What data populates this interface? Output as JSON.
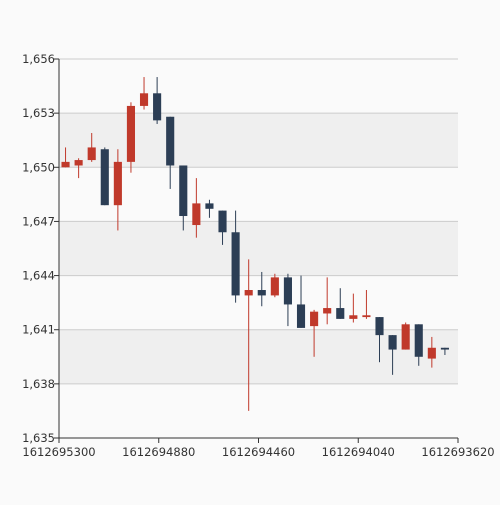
{
  "chart_data": {
    "type": "candlestick",
    "x_ticks": [
      "1612695300",
      "1612694880",
      "1612694460",
      "1612694040",
      "1612693620"
    ],
    "y_ticks": [
      "1,635",
      "1,638",
      "1,641",
      "1,644",
      "1,647",
      "1,650",
      "1,653",
      "1,656"
    ],
    "ylim": [
      1635,
      1656
    ],
    "grid": true,
    "legend": "none",
    "colors": {
      "up": "#c0392b",
      "down": "#2c3e55",
      "band_light": "#fafafa",
      "band_dark": "#efefef",
      "grid": "#cccccc",
      "axis": "#333333"
    },
    "candles": [
      {
        "open": 1650.0,
        "close": 1650.3,
        "high": 1651.1,
        "low": 1650.0
      },
      {
        "open": 1650.1,
        "close": 1650.4,
        "high": 1650.5,
        "low": 1649.4
      },
      {
        "open": 1650.4,
        "close": 1651.1,
        "high": 1651.9,
        "low": 1650.3
      },
      {
        "open": 1651.0,
        "close": 1647.9,
        "high": 1651.1,
        "low": 1647.9
      },
      {
        "open": 1647.9,
        "close": 1650.3,
        "high": 1651.0,
        "low": 1646.5
      },
      {
        "open": 1650.3,
        "close": 1653.4,
        "high": 1653.6,
        "low": 1649.7
      },
      {
        "open": 1653.4,
        "close": 1654.1,
        "high": 1655.0,
        "low": 1653.2
      },
      {
        "open": 1654.1,
        "close": 1652.6,
        "high": 1655.0,
        "low": 1652.4
      },
      {
        "open": 1652.8,
        "close": 1650.1,
        "high": 1652.8,
        "low": 1648.8
      },
      {
        "open": 1650.1,
        "close": 1647.3,
        "high": 1650.1,
        "low": 1646.5
      },
      {
        "open": 1646.8,
        "close": 1648.0,
        "high": 1649.4,
        "low": 1646.1
      },
      {
        "open": 1648.0,
        "close": 1647.7,
        "high": 1648.2,
        "low": 1647.2
      },
      {
        "open": 1647.6,
        "close": 1646.4,
        "high": 1647.6,
        "low": 1645.7
      },
      {
        "open": 1646.4,
        "close": 1642.9,
        "high": 1647.6,
        "low": 1642.5
      },
      {
        "open": 1642.9,
        "close": 1643.2,
        "high": 1644.9,
        "low": 1636.5
      },
      {
        "open": 1643.2,
        "close": 1642.9,
        "high": 1644.2,
        "low": 1642.3
      },
      {
        "open": 1642.9,
        "close": 1643.9,
        "high": 1644.1,
        "low": 1642.8
      },
      {
        "open": 1643.9,
        "close": 1642.4,
        "high": 1644.1,
        "low": 1641.2
      },
      {
        "open": 1642.4,
        "close": 1641.1,
        "high": 1644.0,
        "low": 1641.1
      },
      {
        "open": 1641.2,
        "close": 1642.0,
        "high": 1642.1,
        "low": 1639.5
      },
      {
        "open": 1641.9,
        "close": 1642.2,
        "high": 1643.9,
        "low": 1641.3
      },
      {
        "open": 1642.2,
        "close": 1641.6,
        "high": 1643.3,
        "low": 1641.6
      },
      {
        "open": 1641.6,
        "close": 1641.8,
        "high": 1643.0,
        "low": 1641.4
      },
      {
        "open": 1641.7,
        "close": 1641.8,
        "high": 1643.2,
        "low": 1641.6
      },
      {
        "open": 1641.7,
        "close": 1640.7,
        "high": 1641.7,
        "low": 1639.2
      },
      {
        "open": 1640.7,
        "close": 1639.9,
        "high": 1640.7,
        "low": 1638.5
      },
      {
        "open": 1639.9,
        "close": 1641.3,
        "high": 1641.4,
        "low": 1639.9
      },
      {
        "open": 1641.3,
        "close": 1639.5,
        "high": 1641.3,
        "low": 1639.0
      },
      {
        "open": 1639.4,
        "close": 1640.0,
        "high": 1640.6,
        "low": 1638.9
      },
      {
        "open": 1640.0,
        "close": 1639.9,
        "high": 1640.0,
        "low": 1639.6
      }
    ]
  }
}
